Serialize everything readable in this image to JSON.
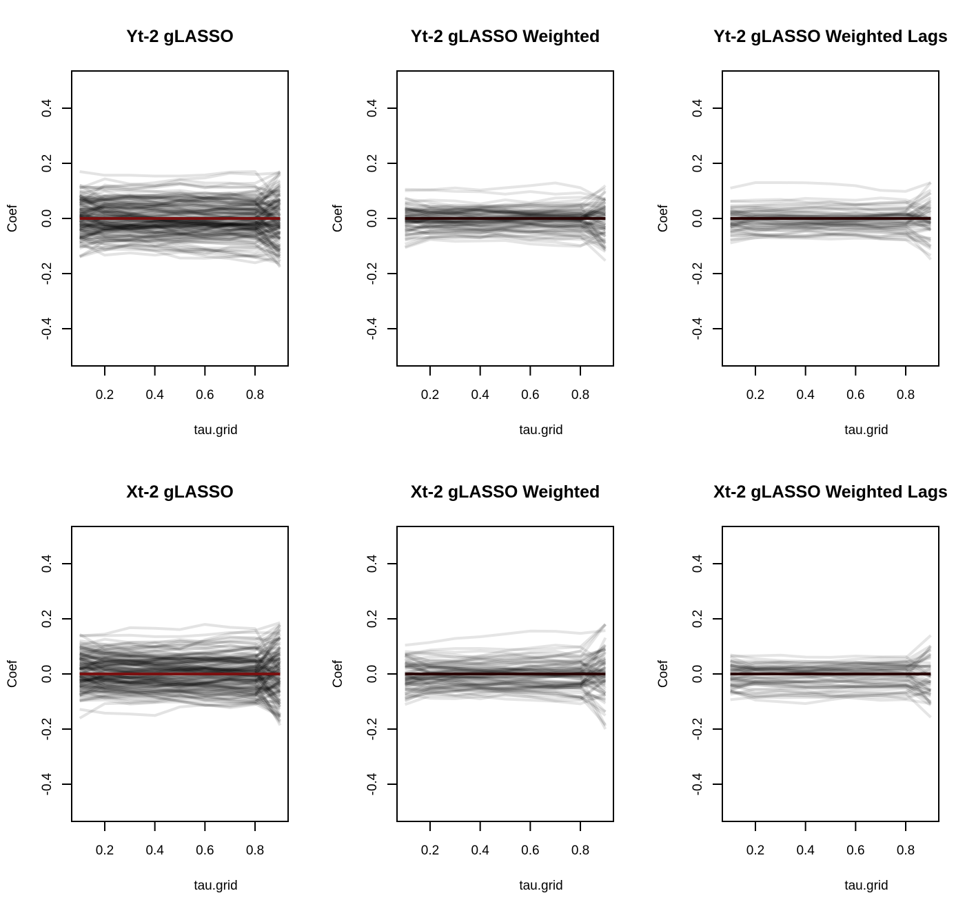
{
  "chart_data": [
    {
      "type": "line",
      "title": "Yt-2 gLASSO",
      "xlabel": "tau.grid",
      "ylabel": "Coef",
      "xlim": [
        0.1,
        0.9
      ],
      "ylim": [
        -0.5,
        0.5
      ],
      "xticks": [
        "0.2",
        "0.4",
        "0.6",
        "0.8"
      ],
      "yticks": [
        "-0.4",
        "-0.2",
        "0.0",
        "0.2",
        "0.4"
      ],
      "n_lines": 150,
      "spread": 0.055,
      "tail_spread": 0.17,
      "line_color": "#000000",
      "line_opacity": 0.11,
      "mean_line": {
        "color": "#7a1010",
        "values": [
          0.0,
          0.0,
          0.0,
          0.0,
          0.0,
          0.0,
          0.0,
          0.0,
          0.0
        ]
      }
    },
    {
      "type": "line",
      "title": "Yt-2 gLASSO Weighted",
      "xlabel": "tau.grid",
      "ylabel": "Coef",
      "xlim": [
        0.1,
        0.9
      ],
      "ylim": [
        -0.5,
        0.5
      ],
      "xticks": [
        "0.2",
        "0.4",
        "0.6",
        "0.8"
      ],
      "yticks": [
        "-0.4",
        "-0.2",
        "0.0",
        "0.2",
        "0.4"
      ],
      "n_lines": 80,
      "spread": 0.04,
      "tail_spread": 0.15,
      "line_color": "#000000",
      "line_opacity": 0.1,
      "mean_line": {
        "color": "#2a0505",
        "values": [
          0.0,
          0.0,
          0.0,
          0.0,
          0.0,
          0.0,
          0.0,
          0.0,
          0.0
        ]
      }
    },
    {
      "type": "line",
      "title": "Yt-2 gLASSO Weighted Lags",
      "xlabel": "tau.grid",
      "ylabel": "Coef",
      "xlim": [
        0.1,
        0.9
      ],
      "ylim": [
        -0.5,
        0.5
      ],
      "xticks": [
        "0.2",
        "0.4",
        "0.6",
        "0.8"
      ],
      "yticks": [
        "-0.4",
        "-0.2",
        "0.0",
        "0.2",
        "0.4"
      ],
      "n_lines": 55,
      "spread": 0.035,
      "tail_spread": 0.13,
      "line_color": "#000000",
      "line_opacity": 0.1,
      "mean_line": {
        "color": "#2a0505",
        "values": [
          0.0,
          0.0,
          0.0,
          0.0,
          0.0,
          0.0,
          0.0,
          0.0,
          0.0
        ]
      }
    },
    {
      "type": "line",
      "title": "Xt-2 gLASSO",
      "xlabel": "tau.grid",
      "ylabel": "Coef",
      "xlim": [
        0.1,
        0.9
      ],
      "ylim": [
        -0.5,
        0.5
      ],
      "xticks": [
        "0.2",
        "0.4",
        "0.6",
        "0.8"
      ],
      "yticks": [
        "-0.4",
        "-0.2",
        "0.0",
        "0.2",
        "0.4"
      ],
      "n_lines": 150,
      "spread": 0.055,
      "tail_spread": 0.2,
      "line_color": "#000000",
      "line_opacity": 0.11,
      "mean_line": {
        "color": "#7a1010",
        "values": [
          0.0,
          0.0,
          0.0,
          0.0,
          0.0,
          0.0,
          0.0,
          0.0,
          0.0
        ]
      }
    },
    {
      "type": "line",
      "title": "Xt-2 gLASSO Weighted",
      "xlabel": "tau.grid",
      "ylabel": "Coef",
      "xlim": [
        0.1,
        0.9
      ],
      "ylim": [
        -0.5,
        0.5
      ],
      "xticks": [
        "0.2",
        "0.4",
        "0.6",
        "0.8"
      ],
      "yticks": [
        "-0.4",
        "-0.2",
        "0.0",
        "0.2",
        "0.4"
      ],
      "n_lines": 80,
      "spread": 0.045,
      "tail_spread": 0.18,
      "line_color": "#000000",
      "line_opacity": 0.1,
      "mean_line": {
        "color": "#2a0505",
        "values": [
          0.0,
          0.0,
          0.0,
          0.0,
          0.0,
          0.0,
          0.0,
          0.0,
          0.0
        ]
      }
    },
    {
      "type": "line",
      "title": "Xt-2 gLASSO Weighted Lags",
      "xlabel": "tau.grid",
      "ylabel": "Coef",
      "xlim": [
        0.1,
        0.9
      ],
      "ylim": [
        -0.5,
        0.5
      ],
      "xticks": [
        "0.2",
        "0.4",
        "0.6",
        "0.8"
      ],
      "yticks": [
        "-0.4",
        "-0.2",
        "0.0",
        "0.2",
        "0.4"
      ],
      "n_lines": 55,
      "spread": 0.035,
      "tail_spread": 0.14,
      "line_color": "#000000",
      "line_opacity": 0.1,
      "mean_line": {
        "color": "#2a0505",
        "values": [
          0.0,
          0.0,
          0.0,
          0.0,
          0.0,
          0.0,
          0.0,
          0.0,
          0.0
        ]
      }
    }
  ]
}
